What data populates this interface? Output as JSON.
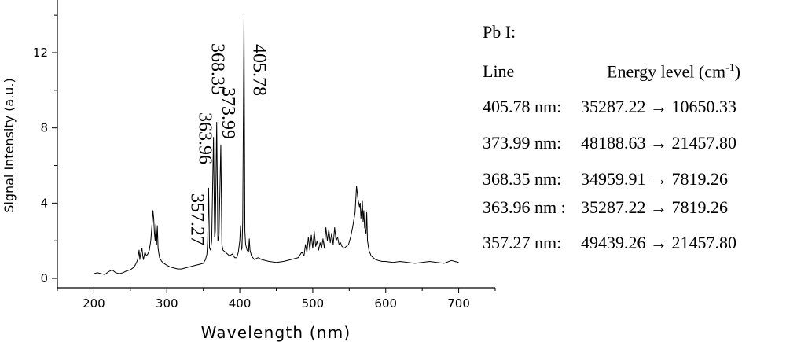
{
  "chart_data": {
    "type": "line",
    "xlabel": "Wavelength (nm)",
    "ylabel": "Signal Intensity (a.u.)",
    "xlim": [
      150,
      750
    ],
    "ylim": [
      -0.5,
      14.8
    ],
    "x_ticks": [
      200,
      300,
      400,
      500,
      600,
      700
    ],
    "y_ticks": [
      0,
      4,
      8,
      12
    ],
    "grid": false,
    "series": [
      {
        "x": [
          200,
          205,
          210,
          215,
          220,
          225,
          230,
          235,
          240,
          245,
          250,
          255,
          258,
          260,
          262,
          263,
          264,
          266,
          267,
          268,
          270,
          272,
          274,
          276,
          278,
          280,
          281,
          282,
          283,
          284,
          285,
          286,
          287,
          288,
          290,
          293,
          296,
          300,
          305,
          310,
          315,
          320,
          325,
          330,
          335,
          340,
          345,
          350,
          353,
          355,
          356,
          357.27,
          358.5,
          360,
          361.5,
          363.96,
          365.5,
          366.5,
          368.35,
          370,
          371.5,
          373.99,
          375.5,
          377,
          380,
          383,
          386,
          390,
          393,
          396,
          398,
          400,
          401,
          402,
          403,
          404,
          405.78,
          407,
          408,
          410,
          412,
          413,
          414,
          416,
          420,
          425,
          430,
          440,
          450,
          460,
          470,
          480,
          485,
          488,
          490,
          492,
          494,
          496,
          498,
          500,
          502,
          504,
          506,
          508,
          510,
          512,
          514,
          516,
          518,
          520,
          522,
          524,
          526,
          528,
          530,
          532,
          534,
          536,
          538,
          540,
          543,
          546,
          549,
          552,
          555,
          558,
          560,
          562,
          564,
          565,
          566,
          567,
          568,
          569,
          570,
          571,
          572,
          573,
          574,
          575,
          577,
          580,
          583,
          586,
          590,
          595,
          600,
          610,
          620,
          630,
          640,
          650,
          660,
          670,
          680,
          690,
          695,
          700
        ],
        "y": [
          0.25,
          0.3,
          0.25,
          0.2,
          0.35,
          0.45,
          0.3,
          0.25,
          0.3,
          0.4,
          0.45,
          0.6,
          0.8,
          1.0,
          1.5,
          1.0,
          1.3,
          1.6,
          1.2,
          1.0,
          1.4,
          1.2,
          1.3,
          1.5,
          2.0,
          3.0,
          3.6,
          3.2,
          2.4,
          2.0,
          2.9,
          1.8,
          2.8,
          1.6,
          1.1,
          0.9,
          0.8,
          0.7,
          0.6,
          0.55,
          0.5,
          0.5,
          0.55,
          0.6,
          0.65,
          0.7,
          0.75,
          0.8,
          1.0,
          1.3,
          2.0,
          4.8,
          1.6,
          1.5,
          2.0,
          7.5,
          2.2,
          2.5,
          8.3,
          2.0,
          2.3,
          7.1,
          1.8,
          1.5,
          1.4,
          1.3,
          1.2,
          1.3,
          1.1,
          1.1,
          1.4,
          2.0,
          2.8,
          1.5,
          1.6,
          3.0,
          13.8,
          2.5,
          1.8,
          1.5,
          1.4,
          2.1,
          1.5,
          1.2,
          1.0,
          1.1,
          1.0,
          0.9,
          0.85,
          0.9,
          1.0,
          1.1,
          1.4,
          1.2,
          1.8,
          1.4,
          2.2,
          1.5,
          2.3,
          1.6,
          2.5,
          1.7,
          2.0,
          1.5,
          1.9,
          1.6,
          2.1,
          1.6,
          2.7,
          2.0,
          2.6,
          1.9,
          2.4,
          1.8,
          2.7,
          2.0,
          2.2,
          1.8,
          1.9,
          1.7,
          1.6,
          1.7,
          1.8,
          2.2,
          2.8,
          3.5,
          4.9,
          4.2,
          3.8,
          4.0,
          3.2,
          3.6,
          4.1,
          3.0,
          3.6,
          2.7,
          2.6,
          2.4,
          3.5,
          2.0,
          1.5,
          1.2,
          1.1,
          1.0,
          0.95,
          0.9,
          0.9,
          0.85,
          0.9,
          0.85,
          0.8,
          0.85,
          0.9,
          0.85,
          0.8,
          0.95,
          0.9,
          0.85
        ]
      }
    ],
    "peak_labels": [
      {
        "text": "357.27",
        "x": 357.27,
        "y": 4.8
      },
      {
        "text": "363.96",
        "x": 363.96,
        "y": 7.5
      },
      {
        "text": "368.35",
        "x": 368.35,
        "y": 8.3
      },
      {
        "text": "373.99",
        "x": 373.99,
        "y": 7.1
      },
      {
        "text": "405.78",
        "x": 405.78,
        "y": 13.8
      }
    ]
  },
  "table": {
    "title": "Pb I:",
    "col_line": "Line",
    "col_energy": "Energy level (cm",
    "col_energy_sup": "-1",
    "col_energy_close": ")",
    "rows": [
      {
        "line": "405.78 nm:",
        "energy": "35287.22 → 10650.33"
      },
      {
        "line": "373.99 nm:",
        "energy": "48188.63 → 21457.80"
      },
      {
        "line": "368.35 nm:",
        "energy": "34959.91 → 7819.26"
      },
      {
        "line": "363.96 nm :",
        "energy": "35287.22 → 7819.26"
      },
      {
        "line": "357.27 nm:",
        "energy": "49439.26  → 21457.80"
      }
    ]
  }
}
